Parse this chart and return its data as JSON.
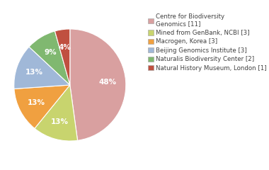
{
  "labels": [
    "Centre for Biodiversity\nGenomics [11]",
    "Mined from GenBank, NCBI [3]",
    "Macrogen, Korea [3]",
    "Beijing Genomics Institute [3]",
    "Naturalis Biodiversity Center [2]",
    "Natural History Museum, London [1]"
  ],
  "values": [
    11,
    3,
    3,
    3,
    2,
    1
  ],
  "colors": [
    "#d9a0a0",
    "#c8d46e",
    "#f0a040",
    "#a0b8d8",
    "#80b870",
    "#c05040"
  ],
  "startangle": 90,
  "background_color": "#ffffff",
  "text_color": "#404040",
  "fontsize": 7.5
}
